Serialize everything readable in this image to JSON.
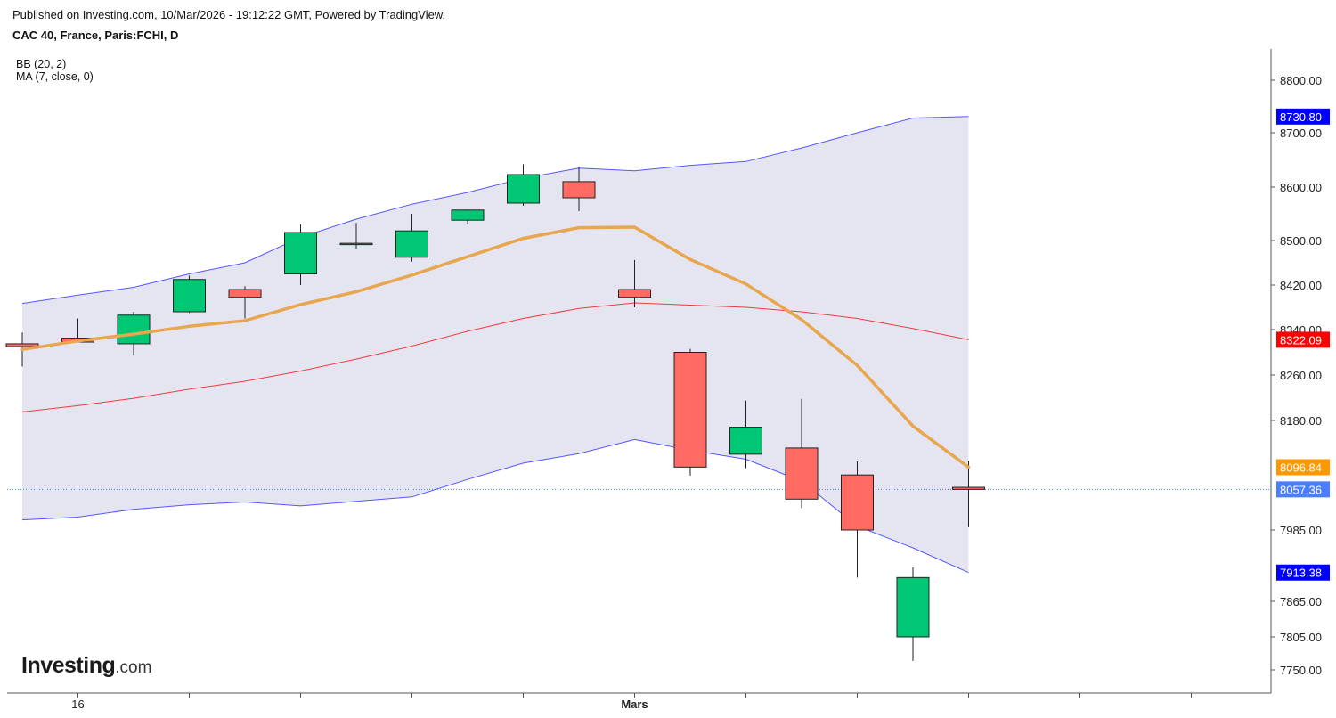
{
  "header": {
    "published": "Published on Investing.com, 10/Mar/2026 - 19:12:22 GMT, Powered by TradingView.",
    "symbol": "CAC 40, France, Paris:FCHI, D"
  },
  "indicators": {
    "bb": "BB (20, 2)",
    "ma": "MA (7, close, 0)"
  },
  "logo": {
    "name": "Investing",
    "suffix": ".com"
  },
  "colors": {
    "up": "#00c774",
    "down": "#ff6b63",
    "bb_band": "#5656ff",
    "bb_basis": "#f03b3b",
    "bb_fill": "#e5e5f2",
    "ma": "#e8a64f",
    "last_price": "#4a7dff"
  },
  "chart_data": {
    "type": "candlestick",
    "y_ticks": [
      "8800.00",
      "8700.00",
      "8600.00",
      "8500.00",
      "8420.00",
      "8340.00",
      "8260.00",
      "8180.00",
      "7985.00",
      "7865.00",
      "7805.00",
      "7750.00"
    ],
    "y_range": [
      7730,
      8850
    ],
    "x_labels": [
      {
        "index": 1,
        "label": "16"
      },
      {
        "index": 11,
        "label": "Mars"
      }
    ],
    "x_tick_indices": [
      1,
      3,
      5,
      7,
      9,
      11,
      13,
      15,
      17,
      19,
      21
    ],
    "candles": [
      {
        "o": 8315,
        "h": 8335,
        "l": 8275,
        "c": 8310
      },
      {
        "o": 8325,
        "h": 8360,
        "l": 8318,
        "c": 8318
      },
      {
        "o": 8315,
        "h": 8372,
        "l": 8295,
        "c": 8366
      },
      {
        "o": 8372,
        "h": 8437,
        "l": 8370,
        "c": 8430
      },
      {
        "o": 8412,
        "h": 8418,
        "l": 8360,
        "c": 8398
      },
      {
        "o": 8440,
        "h": 8530,
        "l": 8420,
        "c": 8515
      },
      {
        "o": 8495,
        "h": 8533,
        "l": 8485,
        "c": 8495
      },
      {
        "o": 8470,
        "h": 8550,
        "l": 8462,
        "c": 8518
      },
      {
        "o": 8538,
        "h": 8558,
        "l": 8530,
        "c": 8557
      },
      {
        "o": 8570,
        "h": 8642,
        "l": 8565,
        "c": 8623
      },
      {
        "o": 8610,
        "h": 8637,
        "l": 8555,
        "c": 8580
      },
      {
        "o": 8412,
        "h": 8465,
        "l": 8380,
        "c": 8398
      },
      {
        "o": 8300,
        "h": 8306,
        "l": 8082,
        "c": 8097
      },
      {
        "o": 8120,
        "h": 8215,
        "l": 8095,
        "c": 8168
      },
      {
        "o": 8131,
        "h": 8218,
        "l": 8024,
        "c": 8040
      },
      {
        "o": 8083,
        "h": 8107,
        "l": 7905,
        "c": 7985
      },
      {
        "o": 7805,
        "h": 7922,
        "l": 7765,
        "c": 7905
      },
      {
        "o": 8061,
        "h": 8108,
        "l": 7990,
        "c": 8057.36
      }
    ],
    "bb_upper": [
      8387,
      8402,
      8416,
      8440,
      8460,
      8506,
      8540,
      8568,
      8590,
      8616,
      8635,
      8630,
      8640,
      8647,
      8672,
      8700,
      8728,
      8730.8
    ],
    "bb_basis": [
      8195,
      8206,
      8219,
      8235,
      8249,
      8267,
      8288,
      8311,
      8337,
      8360,
      8378,
      8388,
      8384,
      8380,
      8372,
      8360,
      8342,
      8322.09
    ],
    "bb_lower": [
      8003,
      8008,
      8022,
      8030,
      8035,
      8028,
      8036,
      8044,
      8075,
      8104,
      8121,
      8146,
      8127,
      8111,
      8072,
      7992,
      7955,
      7913.38
    ],
    "ma": [
      8305,
      8320,
      8332,
      8346,
      8356,
      8385,
      8408,
      8438,
      8471,
      8504,
      8524,
      8525,
      8466,
      8422,
      8358,
      8277,
      8170,
      8096.84
    ],
    "tags": [
      {
        "value": "8730.80",
        "color": "#0000ff"
      },
      {
        "value": "8322.09",
        "color": "#ff0000"
      },
      {
        "value": "8096.84",
        "color": "#ff9800"
      },
      {
        "value": "8057.36",
        "color": "#4a7dff"
      },
      {
        "value": "7913.38",
        "color": "#0000ff"
      }
    ],
    "last_price": 8057.36
  }
}
